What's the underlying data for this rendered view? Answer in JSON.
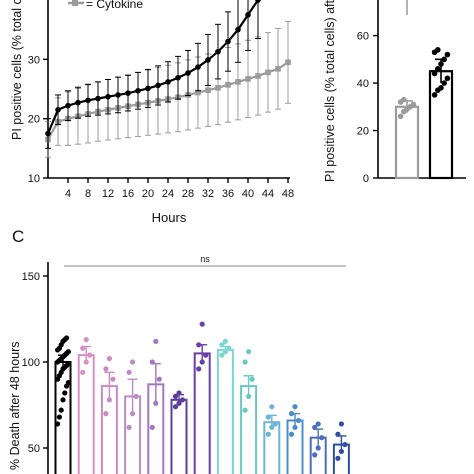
{
  "chart_data": [
    {
      "type": "line",
      "xlabel": "Hours",
      "ylabel": "PI positive cells (% total ce",
      "xticks": [
        4,
        8,
        12,
        16,
        20,
        24,
        28,
        32,
        36,
        40,
        44,
        48
      ],
      "yticks": [
        10,
        20,
        30
      ],
      "xlim": [
        0,
        48
      ],
      "ylim": [
        10,
        40
      ],
      "legend": [
        {
          "name": "Cytokine",
          "color": "#9b9b9b"
        }
      ],
      "series": [
        {
          "name": "",
          "color": "#000000",
          "x": [
            0,
            2,
            4,
            6,
            8,
            10,
            12,
            14,
            16,
            18,
            20,
            22,
            24,
            26,
            28,
            30,
            32,
            34,
            36,
            38,
            40,
            42
          ],
          "y": [
            17.5,
            21.5,
            22.2,
            22.7,
            23.1,
            23.4,
            23.7,
            24.0,
            24.3,
            24.7,
            25.1,
            25.6,
            26.2,
            26.9,
            27.7,
            28.7,
            29.9,
            31.3,
            33.0,
            35.0,
            37.5,
            40.0
          ],
          "err": [
            2.5,
            2.5,
            2.5,
            2.6,
            2.7,
            2.8,
            2.9,
            3.0,
            3.0,
            3.1,
            3.2,
            3.3,
            3.4,
            3.6,
            3.8,
            4.0,
            4.3,
            4.6,
            5.0,
            5.5,
            6.0,
            6.5
          ]
        },
        {
          "name": "Cytokine",
          "color": "#9b9b9b",
          "x": [
            0,
            2,
            4,
            6,
            8,
            10,
            12,
            14,
            16,
            18,
            20,
            22,
            24,
            26,
            28,
            30,
            32,
            34,
            36,
            38,
            40,
            42,
            44,
            46,
            48
          ],
          "y": [
            16.5,
            19.5,
            20.0,
            20.4,
            20.8,
            21.2,
            21.5,
            21.8,
            22.1,
            22.4,
            22.7,
            23.0,
            23.3,
            23.6,
            24.0,
            24.4,
            24.8,
            25.2,
            25.7,
            26.2,
            26.7,
            27.2,
            27.8,
            28.4,
            29.5
          ],
          "err": [
            3.0,
            4.0,
            4.5,
            4.7,
            4.9,
            5.0,
            5.1,
            5.2,
            5.3,
            5.4,
            5.5,
            5.6,
            5.7,
            5.8,
            5.9,
            6.0,
            6.1,
            6.2,
            6.3,
            6.4,
            6.5,
            6.6,
            6.7,
            6.8,
            6.9
          ]
        }
      ]
    },
    {
      "type": "bar",
      "ylabel": "PI positive cells (% total cells) afte",
      "yticks": [
        0,
        20,
        40,
        60
      ],
      "ylim": [
        0,
        75
      ],
      "bars": [
        {
          "value": 30,
          "err": 2.5,
          "color": "#9b9b9b",
          "fill": "#ffffff",
          "points": [
            26,
            28,
            29,
            30,
            31,
            32,
            33
          ]
        },
        {
          "value": 45,
          "err": 5,
          "color": "#000000",
          "fill": "#ffffff",
          "points": [
            35,
            37,
            38,
            40,
            42,
            44,
            46,
            48,
            50,
            52,
            53,
            54
          ]
        }
      ]
    },
    {
      "type": "bar",
      "panel_label": "C",
      "ylabel": "% Death after 48 hours",
      "yticks": [
        50,
        100,
        150
      ],
      "ylim": [
        25,
        150
      ],
      "annotation": "ns",
      "bars": [
        {
          "value": 100,
          "err": 4,
          "color": "#000000",
          "points": [
            64,
            68,
            72,
            78,
            82,
            86,
            88,
            90,
            92,
            94,
            96,
            97,
            98,
            99,
            100,
            101,
            102,
            103,
            104,
            105,
            106,
            107,
            108,
            110,
            112,
            113,
            114
          ]
        },
        {
          "value": 104,
          "err": 5,
          "color": "#d691c5",
          "points": [
            94,
            100,
            104,
            108,
            113
          ]
        },
        {
          "value": 86,
          "err": 8,
          "color": "#c98bc2",
          "points": [
            70,
            78,
            90,
            96,
            102
          ]
        },
        {
          "value": 80,
          "err": 10,
          "color": "#b98cc7",
          "points": [
            62,
            70,
            80,
            94,
            100
          ]
        },
        {
          "value": 87,
          "err": 12,
          "color": "#a577c0",
          "points": [
            62,
            76,
            90,
            100,
            112
          ]
        },
        {
          "value": 78,
          "err": 3,
          "color": "#5b3f98",
          "points": [
            74,
            76,
            78,
            80,
            82
          ]
        },
        {
          "value": 105,
          "err": 5,
          "color": "#6a3fa6",
          "points": [
            96,
            100,
            104,
            110,
            122
          ]
        },
        {
          "value": 107,
          "err": 2,
          "color": "#7ad7cf",
          "points": [
            104,
            106,
            108,
            110,
            112
          ]
        },
        {
          "value": 86,
          "err": 6,
          "color": "#69c8c2",
          "points": [
            72,
            80,
            90,
            100,
            106
          ]
        },
        {
          "value": 65,
          "err": 4,
          "color": "#6db5d8",
          "points": [
            58,
            62,
            64,
            68,
            74
          ]
        },
        {
          "value": 66,
          "err": 4,
          "color": "#4b8cc9",
          "points": [
            58,
            62,
            66,
            70,
            74
          ]
        },
        {
          "value": 56,
          "err": 5,
          "color": "#4a6fb8",
          "points": [
            46,
            50,
            56,
            62,
            64
          ]
        },
        {
          "value": 52,
          "err": 5,
          "color": "#2f4ea3",
          "points": [
            44,
            48,
            52,
            58,
            64
          ]
        }
      ]
    }
  ]
}
